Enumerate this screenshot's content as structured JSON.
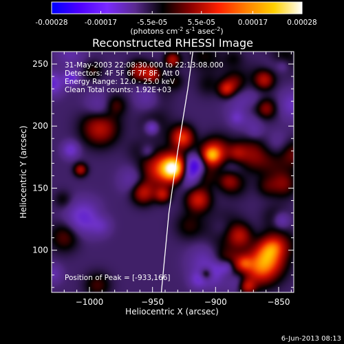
{
  "footer_date": "6-Jun-2013 08:13",
  "chart_data": [
    {
      "type": "colorbar",
      "ticks": [
        "-0.00028",
        "-0.00017",
        "-5.5e-05",
        "5.5e-05",
        "0.00017",
        "0.00028"
      ],
      "tick_values": [
        -0.00028,
        -0.00017,
        -5.5e-05,
        5.5e-05,
        0.00017,
        0.00028
      ],
      "range": [
        -0.00028,
        0.00028
      ],
      "units_label": "(photons cm",
      "units_exp1": "-2",
      "units_mid": " s",
      "units_exp2": "-1",
      "units_tail": " asec",
      "units_exp3": "-2",
      "units_close": ")",
      "colormap": [
        "#0000ff",
        "#4d00ff",
        "#7a2aff",
        "#5a2a90",
        "#000000",
        "#8b0000",
        "#ff2000",
        "#ff8000",
        "#ffd000",
        "#ffffff"
      ]
    },
    {
      "type": "heatmap",
      "title": "Reconstructed RHESSI Image",
      "xlabel": "Heliocentric X (arcsec)",
      "ylabel": "Heliocentric Y (arcsec)",
      "xlim": [
        -1030,
        -838
      ],
      "ylim": [
        66,
        260
      ],
      "x_ticks": [
        {
          "v": -1000,
          "t": "−1000"
        },
        {
          "v": -950,
          "t": "−950"
        },
        {
          "v": -900,
          "t": "−900"
        },
        {
          "v": -850,
          "t": "−850"
        }
      ],
      "y_ticks": [
        {
          "v": 100,
          "t": "100"
        },
        {
          "v": 150,
          "t": "150"
        },
        {
          "v": 200,
          "t": "200"
        },
        {
          "v": 250,
          "t": "250"
        }
      ],
      "annotations": [
        "31-May-2003 22:08:30.000 to 22:13:08.000",
        "Detectors: 4F 5F 6F 7F 8F, Att 0",
        "Energy Range: 12.0 - 25.0 keV",
        "Clean    Total counts: 1.92E+03"
      ],
      "peak_label": "Position of Peak = [-933,166]",
      "peak": {
        "x": -933,
        "y": 166
      },
      "limb_points": [
        [
          -943,
          66
        ],
        [
          -937,
          130
        ],
        [
          -930,
          180
        ],
        [
          -922,
          230
        ],
        [
          -918,
          260
        ]
      ]
    }
  ]
}
